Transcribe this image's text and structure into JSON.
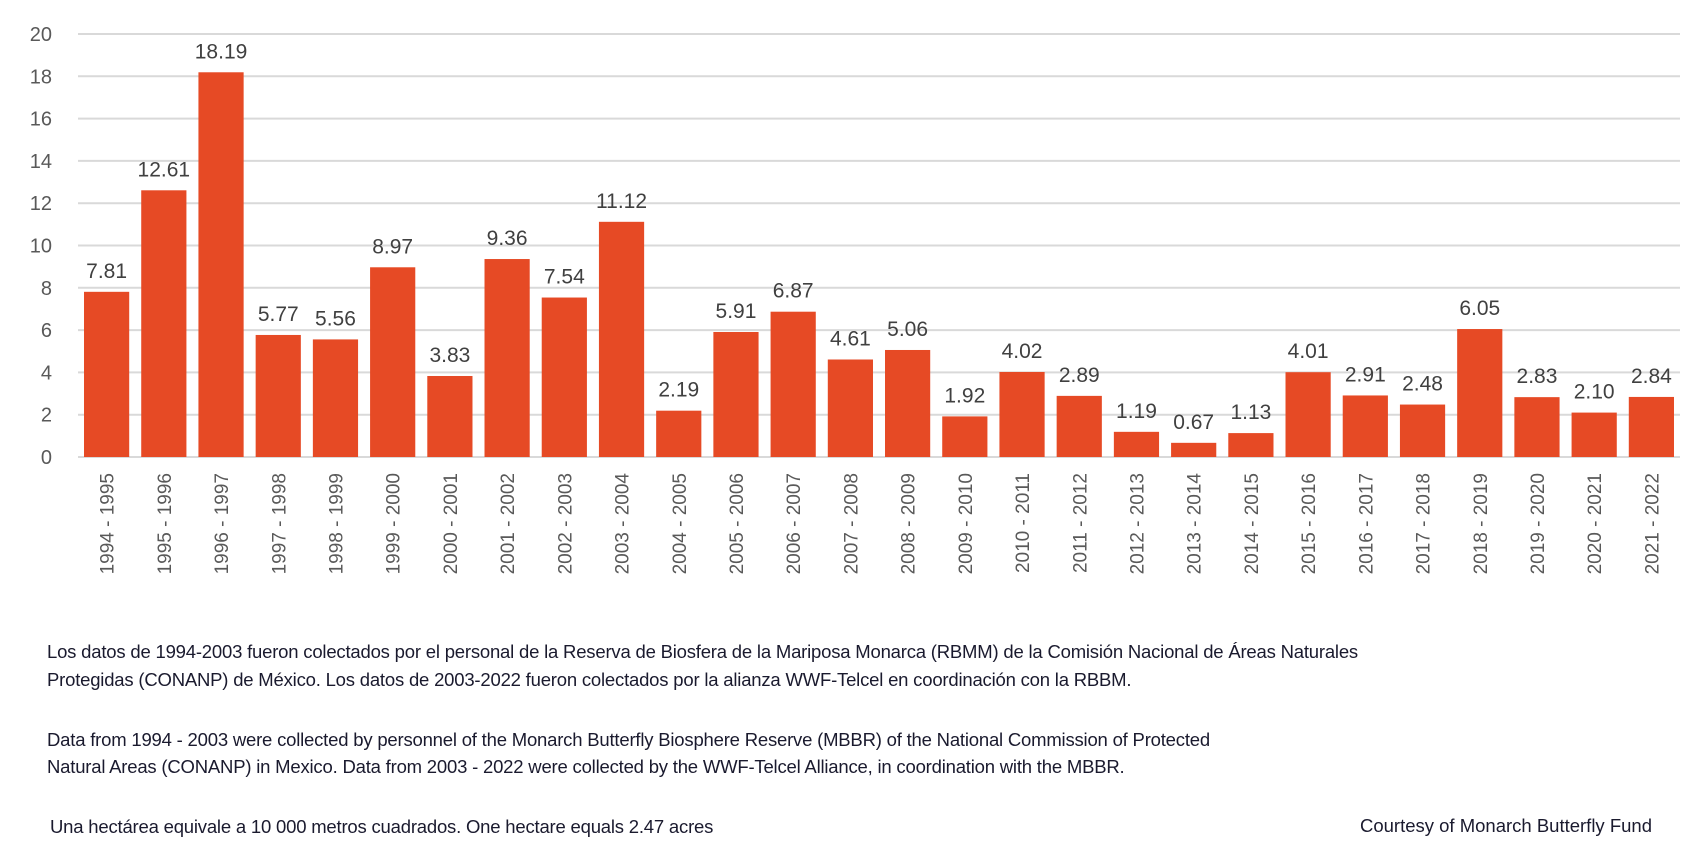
{
  "chart_data": {
    "type": "bar",
    "title": "",
    "xlabel": "",
    "ylabel": "",
    "ylim": [
      0,
      20
    ],
    "yticks": [
      0,
      2,
      4,
      6,
      8,
      10,
      12,
      14,
      16,
      18,
      20
    ],
    "grid": true,
    "legend": "none",
    "bar_color": "#E64A25",
    "categories": [
      "1994 - 1995",
      "1995 - 1996",
      "1996 - 1997",
      "1997 - 1998",
      "1998 - 1999",
      "1999 - 2000",
      "2000 - 2001",
      "2001 - 2002",
      "2002 - 2003",
      "2003 - 2004",
      "2004 - 2005",
      "2005 - 2006",
      "2006 - 2007",
      "2007 - 2008",
      "2008 - 2009",
      "2009 - 2010",
      "2010 - 2011",
      "2011 - 2012",
      "2012 - 2013",
      "2013 - 2014",
      "2014 - 2015",
      "2015 - 2016",
      "2016 - 2017",
      "2017 - 2018",
      "2018 - 2019",
      "2019 - 2020",
      "2020 - 2021",
      "2021 - 2022"
    ],
    "values": [
      7.81,
      12.61,
      18.19,
      5.77,
      5.56,
      8.97,
      3.83,
      9.36,
      7.54,
      11.12,
      2.19,
      5.91,
      6.87,
      4.61,
      5.06,
      1.92,
      4.02,
      2.89,
      1.19,
      0.67,
      1.13,
      4.01,
      2.91,
      2.48,
      6.05,
      2.83,
      2.1,
      2.84
    ],
    "data_labels": [
      "7.81",
      "12.61",
      "18.19",
      "5.77",
      "5.56",
      "8.97",
      "3.83",
      "9.36",
      "7.54",
      "11.12",
      "2.19",
      "5.91",
      "6.87",
      "4.61",
      "5.06",
      "1.92",
      "4.02",
      "2.89",
      "1.19",
      "0.67",
      "1.13",
      "4.01",
      "2.91",
      "2.48",
      "6.05",
      "2.83",
      "2.10",
      "2.84"
    ]
  },
  "notes": {
    "es_line1": "Los datos de 1994-2003 fueron colectados por el personal de la Reserva de Biosfera de la Mariposa Monarca (RBMM) de la Comisión Nacional de Áreas Naturales",
    "es_line2": "Protegidas (CONANP) de México. Los datos de 2003-2022 fueron colectados por la alianza WWF-Telcel en coordinación con la RBBM.",
    "en_line1": "Data from 1994 - 2003 were collected by personnel of the Monarch Butterfly Biosphere Reserve (MBBR) of the National Commission of Protected",
    "en_line2": "Natural Areas (CONANP) in Mexico. Data from 2003 - 2022 were collected by the WWF-Telcel Alliance, in coordination with the MBBR.",
    "hectare": "Una hectárea equivale a 10 000 metros cuadrados. One hectare equals 2.47 acres",
    "courtesy": "Courtesy of Monarch Butterfly Fund"
  }
}
